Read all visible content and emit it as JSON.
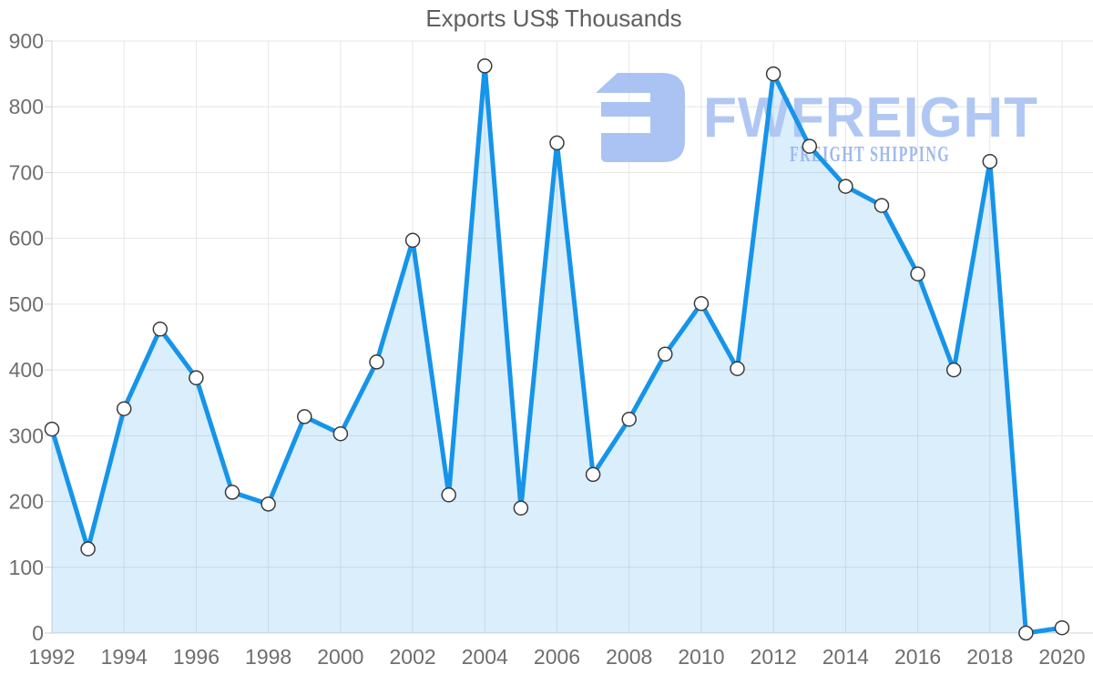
{
  "chart_data": {
    "type": "area",
    "title": "Exports US$ Thousands",
    "x": [
      1992,
      1993,
      1994,
      1995,
      1996,
      1997,
      1998,
      1999,
      2000,
      2001,
      2002,
      2003,
      2004,
      2005,
      2006,
      2007,
      2008,
      2009,
      2010,
      2011,
      2012,
      2013,
      2014,
      2015,
      2016,
      2017,
      2018,
      2019,
      2020
    ],
    "series": [
      {
        "name": "Exports US$ Thousands",
        "values": [
          310,
          128,
          341,
          462,
          388,
          214,
          196,
          329,
          303,
          412,
          597,
          210,
          862,
          190,
          745,
          241,
          325,
          424,
          501,
          402,
          850,
          740,
          679,
          650,
          546,
          400,
          717,
          0,
          8
        ]
      }
    ],
    "xlabel": "",
    "ylabel": "",
    "ylim": [
      0,
      900
    ],
    "ytick_labels": [
      "0",
      "100",
      "200",
      "300",
      "400",
      "500",
      "600",
      "700",
      "800",
      "900"
    ],
    "xtick_labels": [
      "1992",
      "1994",
      "1996",
      "1998",
      "2000",
      "2002",
      "2004",
      "2006",
      "2008",
      "2010",
      "2012",
      "2014",
      "2016",
      "2018",
      "2020"
    ],
    "grid": "on",
    "legend": "none",
    "marker": "circle",
    "colors": {
      "line": "#1694ea",
      "area_fill_rgba": "rgba(22,148,234,0.16)",
      "marker_fill": "#ffffff",
      "marker_stroke": "#3a3a3a",
      "grid": "#e6e6e6",
      "axis": "#d6d6d6",
      "tick": "#cfcfcf",
      "labels": "#6e6e6e",
      "title": "#5f5f5f"
    }
  },
  "watermark": {
    "brand": "FWFREIGHT",
    "tagline": "FREIGHT SHIPPING",
    "brand_color": "#adc5f3",
    "tagline_color": "#9cb6ec",
    "icon_color": "#a6c0f2",
    "icon": "fwfreight-logo-icon"
  }
}
